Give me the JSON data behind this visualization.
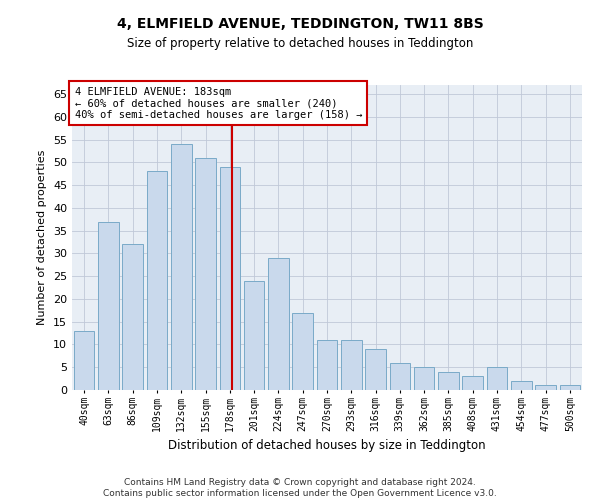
{
  "title": "4, ELMFIELD AVENUE, TEDDINGTON, TW11 8BS",
  "subtitle": "Size of property relative to detached houses in Teddington",
  "xlabel": "Distribution of detached houses by size in Teddington",
  "ylabel": "Number of detached properties",
  "categories": [
    "40sqm",
    "63sqm",
    "86sqm",
    "109sqm",
    "132sqm",
    "155sqm",
    "178sqm",
    "201sqm",
    "224sqm",
    "247sqm",
    "270sqm",
    "293sqm",
    "316sqm",
    "339sqm",
    "362sqm",
    "385sqm",
    "408sqm",
    "431sqm",
    "454sqm",
    "477sqm",
    "500sqm"
  ],
  "values": [
    13,
    37,
    32,
    48,
    54,
    51,
    49,
    24,
    29,
    17,
    11,
    11,
    9,
    6,
    5,
    4,
    3,
    5,
    2,
    1,
    1
  ],
  "bar_color": "#c9d9ec",
  "bar_edge_color": "#7aaac8",
  "grid_color": "#c0c8d8",
  "bg_color": "#e8eef5",
  "property_line_x": 6.08,
  "property_line_color": "#cc0000",
  "annotation_text": "4 ELMFIELD AVENUE: 183sqm\n← 60% of detached houses are smaller (240)\n40% of semi-detached houses are larger (158) →",
  "annotation_box_color": "#cc0000",
  "ylim": [
    0,
    67
  ],
  "yticks": [
    0,
    5,
    10,
    15,
    20,
    25,
    30,
    35,
    40,
    45,
    50,
    55,
    60,
    65
  ],
  "footer1": "Contains HM Land Registry data © Crown copyright and database right 2024.",
  "footer2": "Contains public sector information licensed under the Open Government Licence v3.0."
}
